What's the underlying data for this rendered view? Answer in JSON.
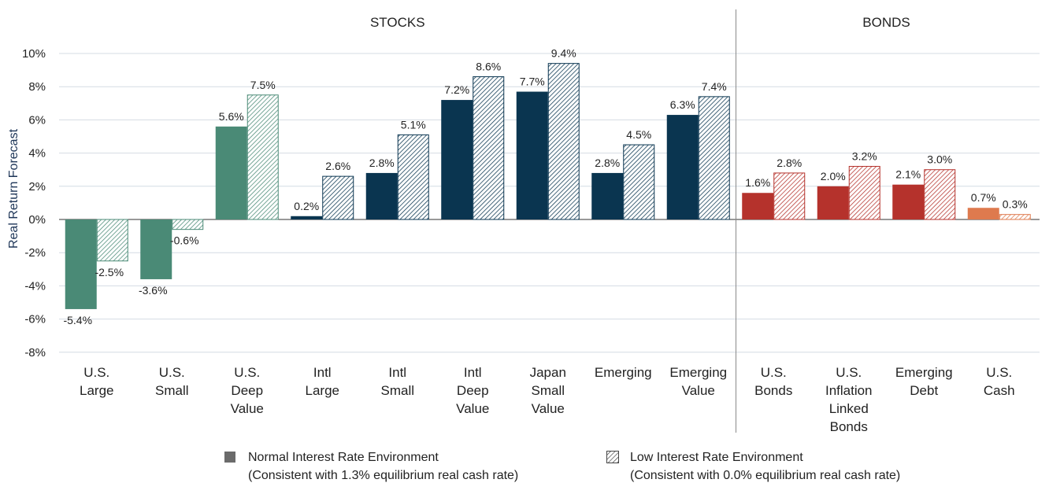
{
  "chart_data": {
    "type": "bar",
    "ylabel": "Real Return Forecast",
    "ylim": [
      -8,
      10
    ],
    "yticks": [
      10,
      8,
      6,
      4,
      2,
      0,
      -2,
      -4,
      -6,
      -8
    ],
    "ytick_labels": [
      "10%",
      "8%",
      "6%",
      "4%",
      "2%",
      "0%",
      "-2%",
      "-4%",
      "-6%",
      "-8%"
    ],
    "grid": true,
    "groups": [
      {
        "label": "STOCKS",
        "first": 0,
        "last": 8
      },
      {
        "label": "BONDS",
        "first": 9,
        "last": 12
      }
    ],
    "categories": [
      [
        "U.S.",
        "Large"
      ],
      [
        "U.S.",
        "Small"
      ],
      [
        "U.S.",
        "Deep",
        "Value"
      ],
      [
        "Intl",
        "Large"
      ],
      [
        "Intl",
        "Small"
      ],
      [
        "Intl",
        "Deep",
        "Value"
      ],
      [
        "Japan",
        "Small",
        "Value"
      ],
      [
        "Emerging"
      ],
      [
        "Emerging",
        "Value"
      ],
      [
        "U.S.",
        "Bonds"
      ],
      [
        "U.S.",
        "Inflation",
        "Linked",
        "Bonds"
      ],
      [
        "Emerging",
        "Debt"
      ],
      [
        "U.S.",
        "Cash"
      ]
    ],
    "category_colors": [
      "#4a8a76",
      "#4a8a76",
      "#4a8a76",
      "#0a3550",
      "#0a3550",
      "#0a3550",
      "#0a3550",
      "#0a3550",
      "#0a3550",
      "#b5322c",
      "#b5322c",
      "#b5322c",
      "#de7a4e"
    ],
    "series": [
      {
        "key": "normal",
        "fill": "solid",
        "values": [
          -5.4,
          -3.6,
          5.6,
          0.2,
          2.8,
          7.2,
          7.7,
          2.8,
          6.3,
          1.6,
          2.0,
          2.1,
          0.7
        ],
        "labels": [
          "-5.4%",
          "-3.6%",
          "5.6%",
          "0.2%",
          "2.8%",
          "7.2%",
          "7.7%",
          "2.8%",
          "6.3%",
          "1.6%",
          "2.0%",
          "2.1%",
          "0.7%"
        ]
      },
      {
        "key": "low",
        "fill": "hatched",
        "values": [
          -2.5,
          -0.6,
          7.5,
          2.6,
          5.1,
          8.6,
          9.4,
          4.5,
          7.4,
          2.8,
          3.2,
          3.0,
          0.3
        ],
        "labels": [
          "-2.5%",
          "-0.6%",
          "7.5%",
          "2.6%",
          "5.1%",
          "8.6%",
          "9.4%",
          "4.5%",
          "7.4%",
          "2.8%",
          "3.2%",
          "3.0%",
          "0.3%"
        ]
      }
    ]
  },
  "legend": {
    "normal": {
      "line1": "Normal Interest Rate Environment",
      "line2": "(Consistent with 1.3% equilibrium real cash rate)",
      "color": "#6b6b6b"
    },
    "low": {
      "line1": "Low Interest Rate Environment",
      "line2": "(Consistent with 0.0% equilibrium real cash rate)"
    }
  }
}
